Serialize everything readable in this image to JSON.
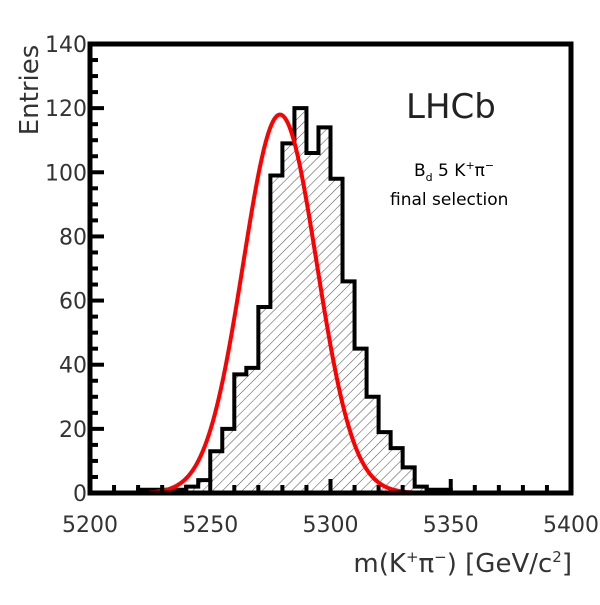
{
  "chart_data": {
    "type": "bar",
    "experiment_label": "LHCb",
    "annotation": {
      "decay_prefix": "B",
      "decay_sub": "d",
      "decay_rest": " 5 K",
      "decay_plus": "+",
      "decay_pi": "π",
      "decay_minus": "−",
      "selection": "final selection"
    },
    "xlabel": {
      "prefix": "m(K",
      "plus": "+",
      "pi": "π",
      "minus": "−",
      "suffix": ") [GeV/c",
      "sq": "2",
      "close": "]"
    },
    "ylabel": "Entries",
    "xlim": [
      5200,
      5400
    ],
    "ylim": [
      0,
      140
    ],
    "x_ticks": [
      5200,
      5250,
      5300,
      5350,
      5400
    ],
    "y_ticks": [
      0,
      20,
      40,
      60,
      80,
      100,
      120,
      140
    ],
    "bin_width": 5,
    "bin_edges_start": 5220,
    "bin_values": [
      1,
      1,
      1,
      1,
      2,
      4,
      13,
      20,
      37,
      39,
      58,
      99,
      109,
      120,
      106,
      114,
      98,
      66,
      45,
      30,
      19,
      14,
      8,
      2,
      1,
      1
    ],
    "fit_peak": 5279,
    "fit_amplitude": 118,
    "fit_sigma": 15.3,
    "colors": {
      "histogram": "#000000",
      "fit": "#ff0000",
      "hatch": "#555555"
    }
  }
}
